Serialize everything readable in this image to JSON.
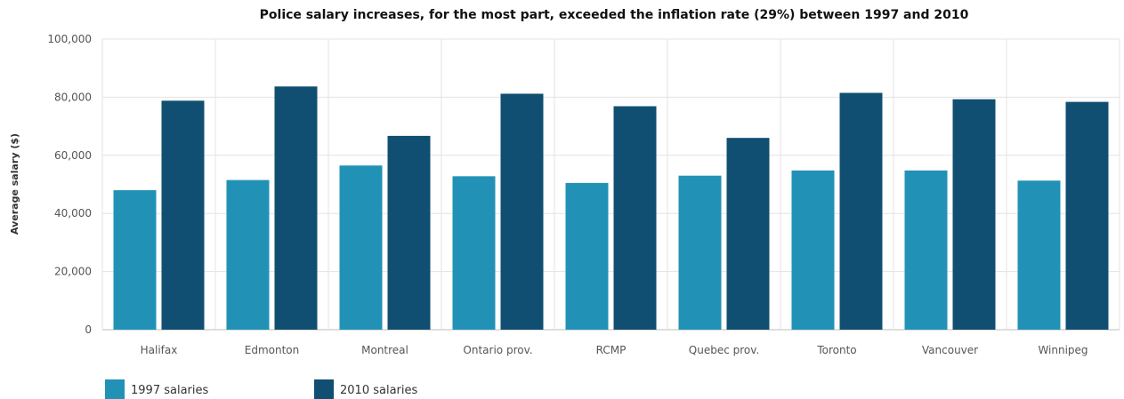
{
  "chart_data": {
    "type": "bar",
    "title": "Police salary increases, for the most part, exceeded the inflation rate (29%) between 1997 and 2010",
    "xlabel": "",
    "ylabel": "Average salary ($)",
    "ylim": [
      0,
      100000
    ],
    "yticks": [
      "0",
      "20,000",
      "40,000",
      "60,000",
      "80,000",
      "100,000"
    ],
    "categories": [
      "Halifax",
      "Edmonton",
      "Montreal",
      "Ontario prov.",
      "RCMP",
      "Quebec prov.",
      "Toronto",
      "Vancouver",
      "Winnipeg"
    ],
    "series": [
      {
        "name": "1997 salaries",
        "color": "#2192b6",
        "values": [
          48000,
          51500,
          56500,
          52800,
          50500,
          53000,
          54800,
          54800,
          51300
        ]
      },
      {
        "name": "2010 salaries",
        "color": "#114f72",
        "values": [
          78800,
          83700,
          66700,
          81200,
          76900,
          66000,
          81500,
          79300,
          78400
        ]
      }
    ],
    "grid": true,
    "legend": "bottom-left"
  }
}
